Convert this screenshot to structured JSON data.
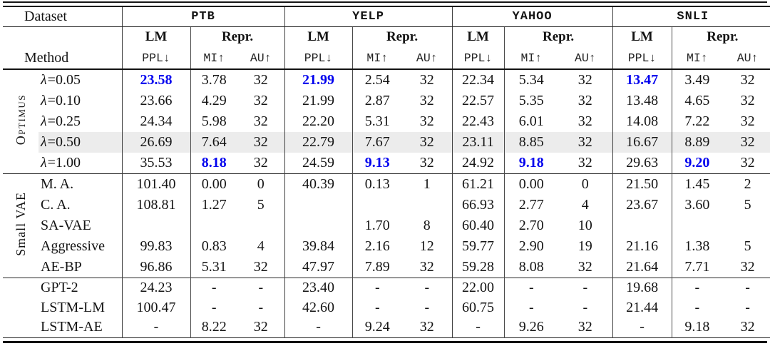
{
  "colors": {
    "best_value": "#0000ee",
    "highlight_row": "#ececec",
    "text": "#141414"
  },
  "header": {
    "dataset_label": "Dataset",
    "method_label": "Method",
    "lm_label": "LM",
    "repr_label": "Repr.",
    "metric_ppl": "PPL↓",
    "metric_mi": "MI↑",
    "metric_au": "AU↑",
    "datasets": [
      "PTB",
      "YELP",
      "YAHOO",
      "SNLI"
    ]
  },
  "groups": [
    {
      "label": "Optimus",
      "small_caps": true,
      "rows": [
        {
          "method": "λ=0.05",
          "highlight": false,
          "best": [
            0,
            3,
            9
          ],
          "values": [
            "23.58",
            "3.78",
            "32",
            "21.99",
            "2.54",
            "32",
            "22.34",
            "5.34",
            "32",
            "13.47",
            "3.49",
            "32"
          ]
        },
        {
          "method": "λ=0.10",
          "highlight": false,
          "best": [],
          "values": [
            "23.66",
            "4.29",
            "32",
            "21.99",
            "2.87",
            "32",
            "22.57",
            "5.35",
            "32",
            "13.48",
            "4.65",
            "32"
          ]
        },
        {
          "method": "λ=0.25",
          "highlight": false,
          "best": [],
          "values": [
            "24.34",
            "5.98",
            "32",
            "22.20",
            "5.31",
            "32",
            "22.43",
            "6.01",
            "32",
            "14.08",
            "7.22",
            "32"
          ]
        },
        {
          "method": "λ=0.50",
          "highlight": true,
          "best": [],
          "values": [
            "26.69",
            "7.64",
            "32",
            "22.79",
            "7.67",
            "32",
            "23.11",
            "8.85",
            "32",
            "16.67",
            "8.89",
            "32"
          ]
        },
        {
          "method": "λ=1.00",
          "highlight": false,
          "best": [
            1,
            4,
            7,
            10
          ],
          "values": [
            "35.53",
            "8.18",
            "32",
            "24.59",
            "9.13",
            "32",
            "24.92",
            "9.18",
            "32",
            "29.63",
            "9.20",
            "32"
          ]
        }
      ]
    },
    {
      "label": "Small VAE",
      "small_caps": false,
      "rows": [
        {
          "method": "M. A.",
          "highlight": false,
          "best": [],
          "values": [
            "101.40",
            "0.00",
            "0",
            "40.39",
            "0.13",
            "1",
            "61.21",
            "0.00",
            "0",
            "21.50",
            "1.45",
            "2"
          ]
        },
        {
          "method": "C. A.",
          "highlight": false,
          "best": [],
          "values": [
            "108.81",
            "1.27",
            "5",
            "",
            "",
            "",
            "66.93",
            "2.77",
            "4",
            "23.67",
            "3.60",
            "5"
          ]
        },
        {
          "method": "SA-VAE",
          "highlight": false,
          "best": [],
          "values": [
            "",
            "",
            "",
            "",
            "1.70",
            "8",
            "60.40",
            "2.70",
            "10",
            "",
            "",
            ""
          ]
        },
        {
          "method": "Aggressive",
          "highlight": false,
          "best": [],
          "values": [
            "99.83",
            "0.83",
            "4",
            "39.84",
            "2.16",
            "12",
            "59.77",
            "2.90",
            "19",
            "21.16",
            "1.38",
            "5"
          ]
        },
        {
          "method": "AE-BP",
          "highlight": false,
          "best": [],
          "values": [
            "96.86",
            "5.31",
            "32",
            "47.97",
            "7.89",
            "32",
            "59.28",
            "8.08",
            "32",
            "21.64",
            "7.71",
            "32"
          ]
        }
      ]
    },
    {
      "label": "",
      "small_caps": false,
      "rows": [
        {
          "method": "GPT-2",
          "highlight": false,
          "best": [],
          "values": [
            "24.23",
            "-",
            "-",
            "23.40",
            "-",
            "-",
            "22.00",
            "-",
            "-",
            "19.68",
            "-",
            "-"
          ]
        },
        {
          "method": "LSTM-LM",
          "highlight": false,
          "best": [],
          "values": [
            "100.47",
            "-",
            "-",
            "42.60",
            "-",
            "-",
            "60.75",
            "-",
            "-",
            "21.44",
            "-",
            "-"
          ]
        },
        {
          "method": "LSTM-AE",
          "highlight": false,
          "best": [],
          "values": [
            "-",
            "8.22",
            "32",
            "-",
            "9.24",
            "32",
            "-",
            "9.26",
            "32",
            "-",
            "9.18",
            "32"
          ]
        }
      ]
    }
  ]
}
